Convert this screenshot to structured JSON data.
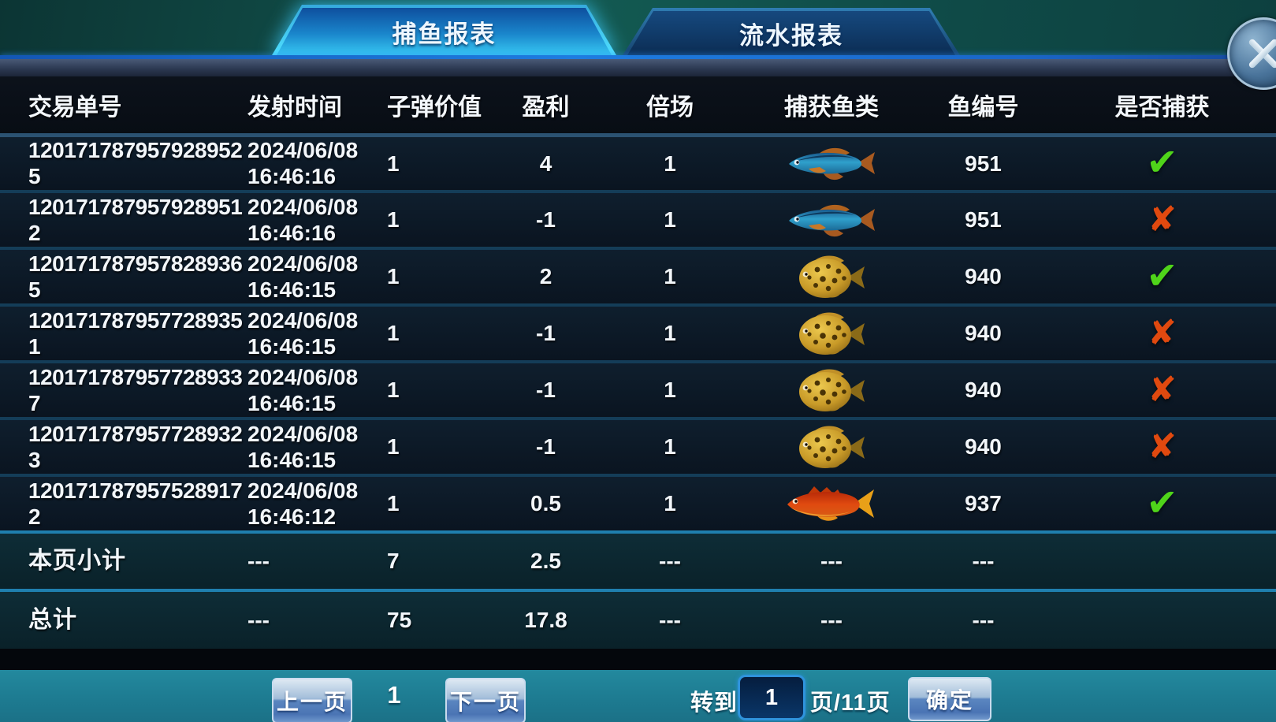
{
  "tabs": [
    {
      "label": "捕鱼报表",
      "active": true
    },
    {
      "label": "流水报表",
      "active": false
    }
  ],
  "table": {
    "columns": [
      "交易单号",
      "发射时间",
      "子弹价值",
      "盈利",
      "倍场",
      "捕获鱼类",
      "鱼编号",
      "是否捕获"
    ],
    "rows": [
      {
        "order_id": "1201717879579289525",
        "fire_time": "2024/06/08 16:46:16",
        "bullet_value": "1",
        "profit": "4",
        "multiplier": "1",
        "fish": "blue-striped-fish",
        "fish_id": "951",
        "caught": true
      },
      {
        "order_id": "1201717879579289512",
        "fire_time": "2024/06/08 16:46:16",
        "bullet_value": "1",
        "profit": "-1",
        "multiplier": "1",
        "fish": "blue-striped-fish",
        "fish_id": "951",
        "caught": false
      },
      {
        "order_id": "1201717879578289365",
        "fire_time": "2024/06/08 16:46:15",
        "bullet_value": "1",
        "profit": "2",
        "multiplier": "1",
        "fish": "yellow-spotted-fish",
        "fish_id": "940",
        "caught": true
      },
      {
        "order_id": "1201717879577289351",
        "fire_time": "2024/06/08 16:46:15",
        "bullet_value": "1",
        "profit": "-1",
        "multiplier": "1",
        "fish": "yellow-spotted-fish",
        "fish_id": "940",
        "caught": false
      },
      {
        "order_id": "1201717879577289337",
        "fire_time": "2024/06/08 16:46:15",
        "bullet_value": "1",
        "profit": "-1",
        "multiplier": "1",
        "fish": "yellow-spotted-fish",
        "fish_id": "940",
        "caught": false
      },
      {
        "order_id": "1201717879577289323",
        "fire_time": "2024/06/08 16:46:15",
        "bullet_value": "1",
        "profit": "-1",
        "multiplier": "1",
        "fish": "yellow-spotted-fish",
        "fish_id": "940",
        "caught": false
      },
      {
        "order_id": "1201717879575289172",
        "fire_time": "2024/06/08 16:46:12",
        "bullet_value": "1",
        "profit": "0.5",
        "multiplier": "1",
        "fish": "red-fish",
        "fish_id": "937",
        "caught": true
      }
    ],
    "subtotal_row": {
      "label": "本页小计",
      "fire_time": "---",
      "bullet_value": "7",
      "profit": "2.5",
      "multiplier": "---",
      "fish": "---",
      "fish_id": "---",
      "caught": ""
    },
    "total_row": {
      "label": "总计",
      "fire_time": "---",
      "bullet_value": "75",
      "profit": "17.8",
      "multiplier": "---",
      "fish": "---",
      "fish_id": "---",
      "caught": ""
    }
  },
  "icons": {
    "caught_true": "✔",
    "caught_false": "✘"
  },
  "pagination": {
    "prev_label": "上一页",
    "current_page": "1",
    "next_label": "下一页",
    "goto_label": "转到",
    "goto_value": "1",
    "pages_label": "页/11页",
    "confirm_label": "确定"
  },
  "colors": {
    "check_green": "#4fd41a",
    "cross_red": "#e0490f",
    "tab_active_glow": "#3ccdff",
    "bottom_bar_teal": "#1e7d93"
  }
}
